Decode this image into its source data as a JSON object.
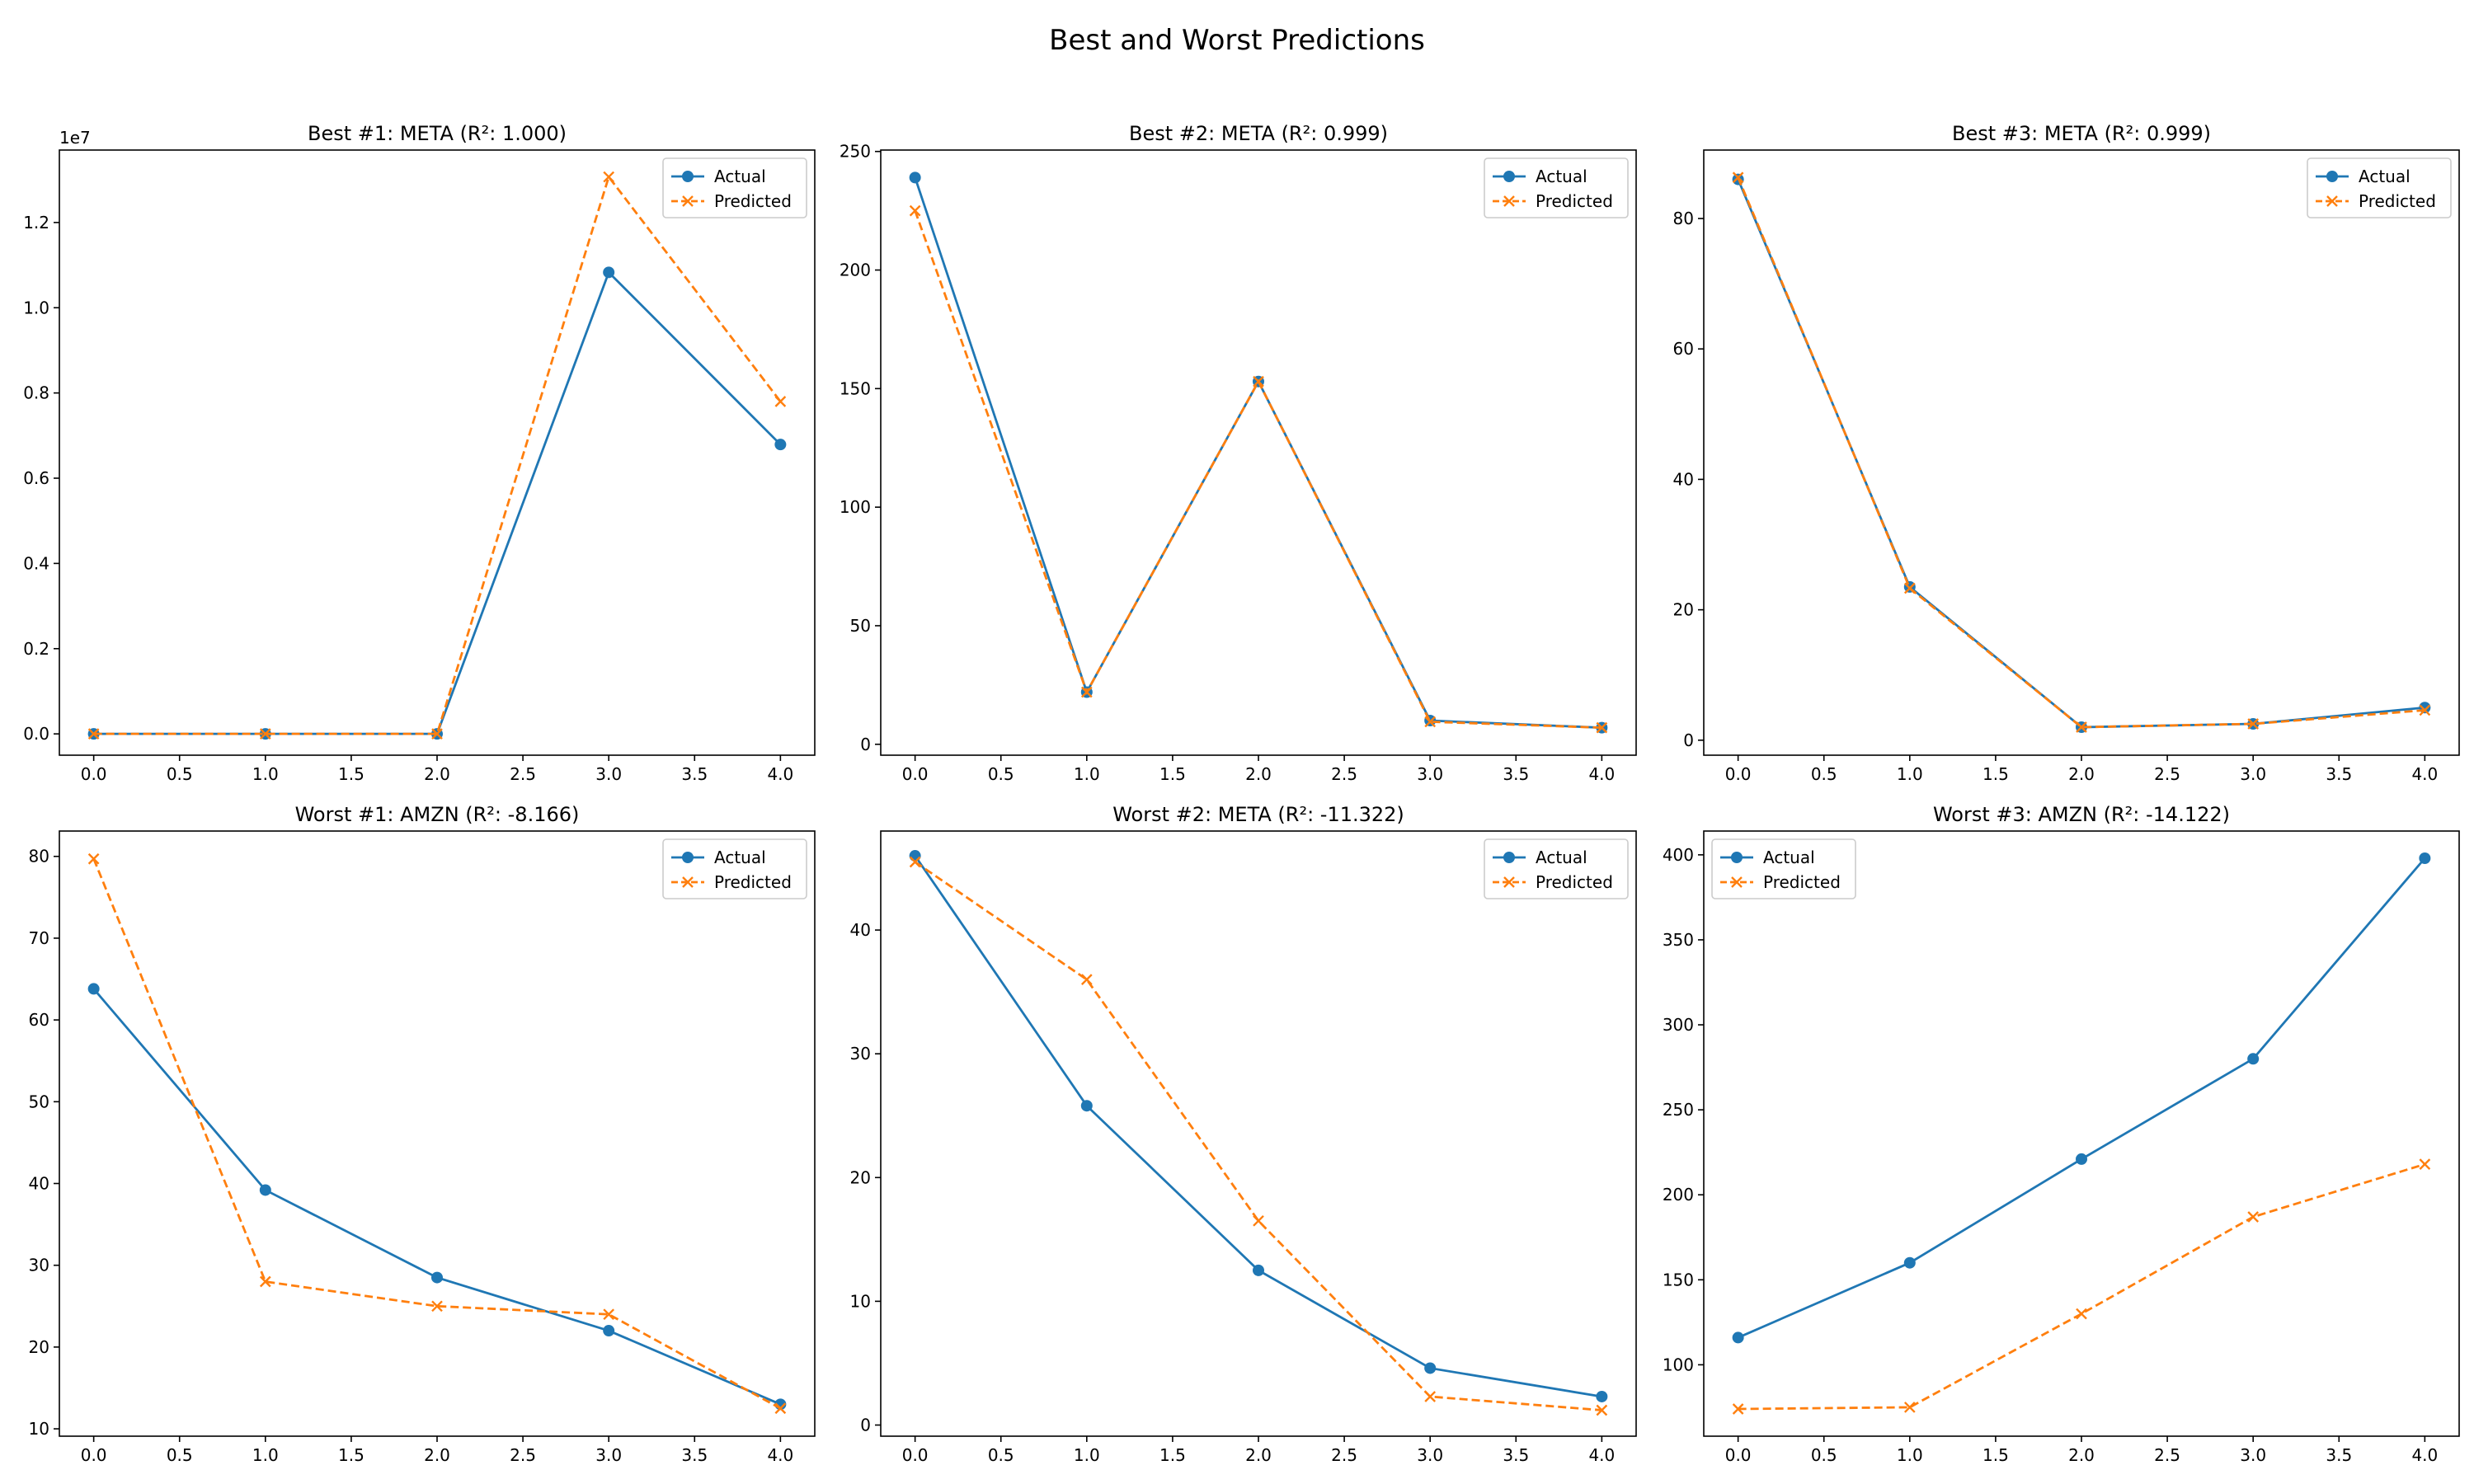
{
  "figure_title": "Best and Worst Predictions",
  "colors": {
    "actual": "#1f77b4",
    "predicted": "#ff7f0e"
  },
  "legend_labels": {
    "actual": "Actual",
    "predicted": "Predicted"
  },
  "chart_data": [
    {
      "type": "line",
      "title": "Best #1: META (R²: 1.000)",
      "x": [
        0,
        1,
        2,
        3,
        4
      ],
      "xlim": [
        -0.2,
        4.2
      ],
      "xticks": [
        0.0,
        0.5,
        1.0,
        1.5,
        2.0,
        2.5,
        3.0,
        3.5,
        4.0
      ],
      "ylim": [
        -500000,
        13700000
      ],
      "yticks": [
        0,
        2000000,
        4000000,
        6000000,
        8000000,
        10000000,
        12000000
      ],
      "ytick_labels": [
        "0.0",
        "0.2",
        "0.4",
        "0.6",
        "0.8",
        "1.0",
        "1.2"
      ],
      "y_offset_label": "1e7",
      "legend_position": "top-right",
      "series": [
        {
          "name": "Actual",
          "values": [
            0,
            0,
            0,
            10830000,
            6790000
          ]
        },
        {
          "name": "Predicted",
          "values": [
            0,
            0,
            0,
            13070000,
            7800000
          ]
        }
      ]
    },
    {
      "type": "line",
      "title": "Best #2: META (R²: 0.999)",
      "x": [
        0,
        1,
        2,
        3,
        4
      ],
      "xlim": [
        -0.2,
        4.2
      ],
      "xticks": [
        0.0,
        0.5,
        1.0,
        1.5,
        2.0,
        2.5,
        3.0,
        3.5,
        4.0
      ],
      "ylim": [
        -4.6,
        250.6
      ],
      "yticks": [
        0,
        50,
        100,
        150,
        200,
        250
      ],
      "legend_position": "top-right",
      "series": [
        {
          "name": "Actual",
          "values": [
            239,
            22,
            153,
            10,
            7
          ]
        },
        {
          "name": "Predicted",
          "values": [
            225,
            22,
            153,
            9.5,
            7
          ]
        }
      ]
    },
    {
      "type": "line",
      "title": "Best #3: META (R²: 0.999)",
      "x": [
        0,
        1,
        2,
        3,
        4
      ],
      "xlim": [
        -0.2,
        4.2
      ],
      "xticks": [
        0.0,
        0.5,
        1.0,
        1.5,
        2.0,
        2.5,
        3.0,
        3.5,
        4.0
      ],
      "ylim": [
        -2.3,
        90.5
      ],
      "yticks": [
        0,
        20,
        40,
        60,
        80
      ],
      "legend_position": "top-right",
      "series": [
        {
          "name": "Actual",
          "values": [
            86,
            23.5,
            2,
            2.5,
            5
          ]
        },
        {
          "name": "Predicted",
          "values": [
            86.3,
            23.3,
            2,
            2.5,
            4.6
          ]
        }
      ]
    },
    {
      "type": "line",
      "title": "Worst #1: AMZN (R²: -8.166)",
      "x": [
        0,
        1,
        2,
        3,
        4
      ],
      "xlim": [
        -0.2,
        4.2
      ],
      "xticks": [
        0.0,
        0.5,
        1.0,
        1.5,
        2.0,
        2.5,
        3.0,
        3.5,
        4.0
      ],
      "ylim": [
        9.1,
        83.1
      ],
      "yticks": [
        10,
        20,
        30,
        40,
        50,
        60,
        70,
        80
      ],
      "legend_position": "top-right",
      "series": [
        {
          "name": "Actual",
          "values": [
            63.8,
            39.2,
            28.5,
            22,
            13
          ]
        },
        {
          "name": "Predicted",
          "values": [
            79.7,
            28,
            25,
            24,
            12.5
          ]
        }
      ]
    },
    {
      "type": "line",
      "title": "Worst #2: META (R²: -11.322)",
      "x": [
        0,
        1,
        2,
        3,
        4
      ],
      "xlim": [
        -0.2,
        4.2
      ],
      "xticks": [
        0.0,
        0.5,
        1.0,
        1.5,
        2.0,
        2.5,
        3.0,
        3.5,
        4.0
      ],
      "ylim": [
        -0.9,
        48
      ],
      "yticks": [
        0,
        10,
        20,
        30,
        40
      ],
      "legend_position": "top-right",
      "series": [
        {
          "name": "Actual",
          "values": [
            46,
            25.8,
            12.5,
            4.6,
            2.3
          ]
        },
        {
          "name": "Predicted",
          "values": [
            45.5,
            36,
            16.5,
            2.3,
            1.2
          ]
        }
      ]
    },
    {
      "type": "line",
      "title": "Worst #3: AMZN (R²: -14.122)",
      "x": [
        0,
        1,
        2,
        3,
        4
      ],
      "xlim": [
        -0.2,
        4.2
      ],
      "xticks": [
        0.0,
        0.5,
        1.0,
        1.5,
        2.0,
        2.5,
        3.0,
        3.5,
        4.0
      ],
      "ylim": [
        58,
        414
      ],
      "yticks": [
        100,
        150,
        200,
        250,
        300,
        350,
        400
      ],
      "legend_position": "top-left",
      "series": [
        {
          "name": "Actual",
          "values": [
            116,
            160,
            221,
            280,
            398
          ]
        },
        {
          "name": "Predicted",
          "values": [
            74,
            75,
            130,
            187,
            218
          ]
        }
      ]
    }
  ]
}
